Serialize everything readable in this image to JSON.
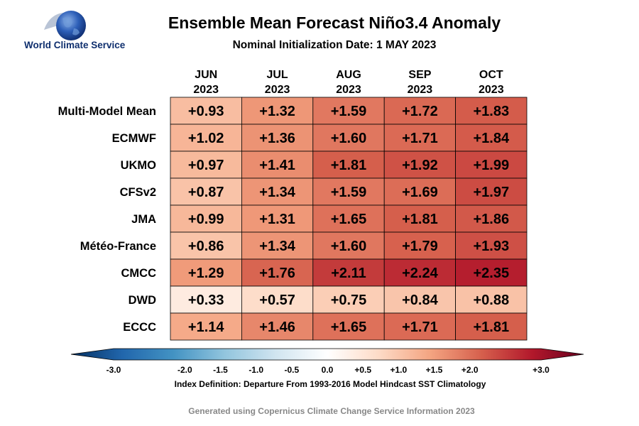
{
  "logo": {
    "text": "World Climate Service"
  },
  "chart_data": {
    "type": "heatmap",
    "title": "Ensemble Mean Forecast Niño3.4 Anomaly",
    "subtitle": "Nominal Initialization Date: 1 MAY 2023",
    "columns": [
      {
        "month": "JUN",
        "year": "2023"
      },
      {
        "month": "JUL",
        "year": "2023"
      },
      {
        "month": "AUG",
        "year": "2023"
      },
      {
        "month": "SEP",
        "year": "2023"
      },
      {
        "month": "OCT",
        "year": "2023"
      }
    ],
    "rows": [
      "Multi-Model Mean",
      "ECMWF",
      "UKMO",
      "CFSv2",
      "JMA",
      "Météo-France",
      "CMCC",
      "DWD",
      "ECCC"
    ],
    "values": [
      [
        0.93,
        1.32,
        1.59,
        1.72,
        1.83
      ],
      [
        1.02,
        1.36,
        1.6,
        1.71,
        1.84
      ],
      [
        0.97,
        1.41,
        1.81,
        1.92,
        1.99
      ],
      [
        0.87,
        1.34,
        1.59,
        1.69,
        1.97
      ],
      [
        0.99,
        1.31,
        1.65,
        1.81,
        1.86
      ],
      [
        0.86,
        1.34,
        1.6,
        1.79,
        1.93
      ],
      [
        1.29,
        1.76,
        2.11,
        2.24,
        2.35
      ],
      [
        0.33,
        0.57,
        0.75,
        0.84,
        0.88
      ],
      [
        1.14,
        1.46,
        1.65,
        1.71,
        1.81
      ]
    ],
    "value_labels": [
      [
        "+0.93",
        "+1.32",
        "+1.59",
        "+1.72",
        "+1.83"
      ],
      [
        "+1.02",
        "+1.36",
        "+1.60",
        "+1.71",
        "+1.84"
      ],
      [
        "+0.97",
        "+1.41",
        "+1.81",
        "+1.92",
        "+1.99"
      ],
      [
        "+0.87",
        "+1.34",
        "+1.59",
        "+1.69",
        "+1.97"
      ],
      [
        "+0.99",
        "+1.31",
        "+1.65",
        "+1.81",
        "+1.86"
      ],
      [
        "+0.86",
        "+1.34",
        "+1.60",
        "+1.79",
        "+1.93"
      ],
      [
        "+1.29",
        "+1.76",
        "+2.11",
        "+2.24",
        "+2.35"
      ],
      [
        "+0.33",
        "+0.57",
        "+0.75",
        "+0.84",
        "+0.88"
      ],
      [
        "+1.14",
        "+1.46",
        "+1.65",
        "+1.71",
        "+1.81"
      ]
    ],
    "colorbar": {
      "range": [
        -3.0,
        3.0
      ],
      "ticks": [
        -3.0,
        -2.0,
        -1.5,
        -1.0,
        -0.5,
        0.0,
        0.5,
        1.0,
        1.5,
        2.0,
        3.0
      ],
      "tick_labels": [
        "-3.0",
        "-2.0",
        "-1.5",
        "-1.0",
        "-0.5",
        "0.0",
        "+0.5",
        "+1.0",
        "+1.5",
        "+2.0",
        "+3.0"
      ],
      "colors": [
        "#053061",
        "#2166ac",
        "#4393c3",
        "#92c5de",
        "#d1e5f0",
        "#ffffff",
        "#fddbc7",
        "#f4a582",
        "#d6604d",
        "#b2182b",
        "#67001f"
      ]
    },
    "index_definition": "Index Definition: Departure From 1993-2016 Model Hindcast SST Climatology",
    "footer": "Generated using Copernicus Climate Change Service Information 2023"
  }
}
